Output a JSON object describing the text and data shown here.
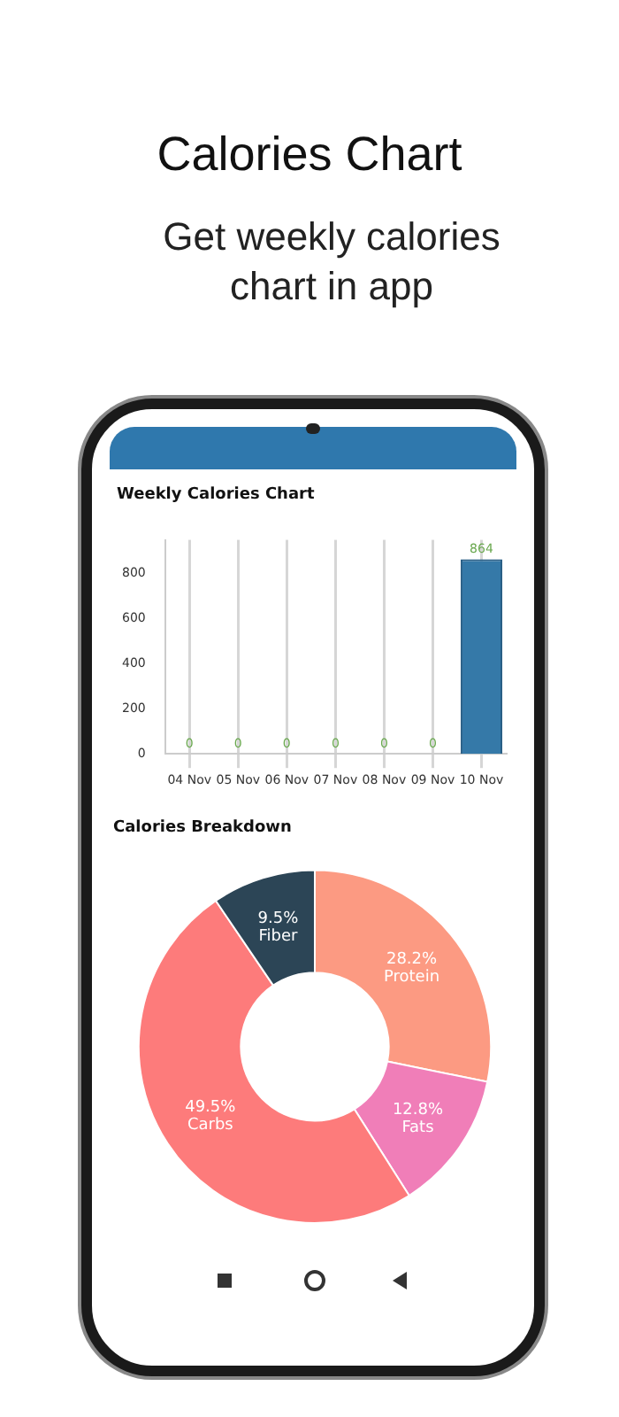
{
  "chart_data": [
    {
      "type": "bar",
      "title": "Weekly Calories Chart",
      "annotations": [
        "Calories Chart",
        "Get weekly calories chart in app"
      ],
      "categories": [
        "04 Nov",
        "05 Nov",
        "06 Nov",
        "07 Nov",
        "08 Nov",
        "09 Nov",
        "10 Nov"
      ],
      "values": [
        0,
        0,
        0,
        0,
        0,
        0,
        864
      ],
      "color": "#3579a8",
      "ylim": [
        0,
        950
      ],
      "yticks": [
        0,
        200,
        400,
        600,
        800
      ],
      "grid": "x",
      "legend": false,
      "data_labels": true
    },
    {
      "type": "donut",
      "title": "Calories Breakdown",
      "categories": [
        "Protein",
        "Fats",
        "Carbs",
        "Fiber"
      ],
      "values": [
        28.2,
        12.8,
        49.5,
        9.5
      ],
      "colors": [
        "#fc9a82",
        "#f07eb8",
        "#fd7b7b",
        "#2c4556"
      ],
      "value_labels": [
        "28.2%",
        "12.8%",
        "49.5%",
        "9.5%"
      ],
      "legend": false
    }
  ]
}
